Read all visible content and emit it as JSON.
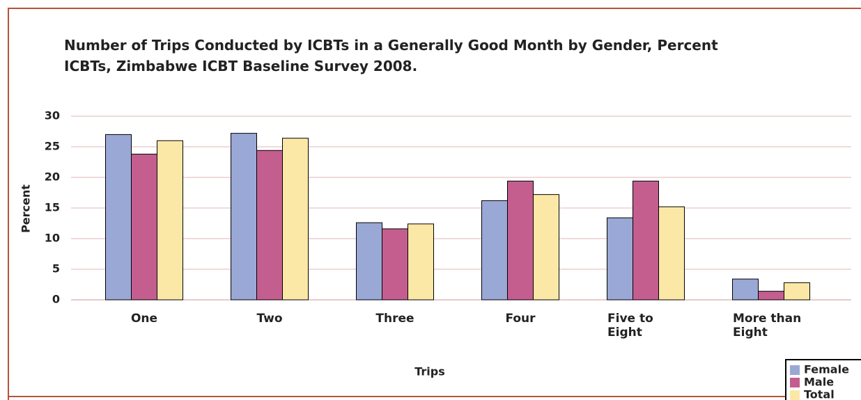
{
  "chart_data": {
    "type": "bar",
    "title": "Number of Trips Conducted by ICBTs in a Generally Good Month by Gender, Percent ICBTs, Zimbabwe ICBT Baseline Survey 2008.",
    "x_label": "Trips",
    "y_label": "Percent",
    "categories": [
      "One",
      "Two",
      "Three",
      "Four",
      "Five to Eight",
      "More than Eight"
    ],
    "series": [
      {
        "name": "Female",
        "color": "#9aa8d6",
        "values": [
          27.0,
          27.2,
          12.6,
          16.2,
          13.4,
          3.4
        ]
      },
      {
        "name": "Male",
        "color": "#c45e8f",
        "values": [
          23.8,
          24.4,
          11.6,
          19.4,
          19.4,
          1.4
        ]
      },
      {
        "name": "Total",
        "color": "#fbe8a6",
        "values": [
          26.0,
          26.4,
          12.4,
          17.2,
          15.2,
          2.8
        ]
      }
    ],
    "ylim": [
      0,
      30
    ],
    "yticks": [
      0,
      5,
      10,
      15,
      20,
      25,
      30
    ],
    "grid": true,
    "legend": "bottom-right"
  }
}
